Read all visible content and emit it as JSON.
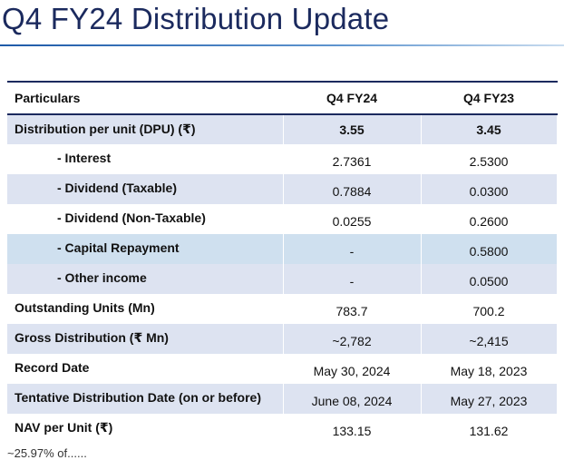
{
  "page": {
    "title": "Q4 FY24 Distribution Update"
  },
  "table": {
    "headers": [
      "Particulars",
      "Q4 FY24",
      "Q4 FY23"
    ],
    "rows": [
      {
        "label": "Distribution per unit (DPU) (₹)",
        "q4fy24": "3.55",
        "q4fy23": "3.45"
      },
      {
        "label": "- Interest",
        "q4fy24": "2.7361",
        "q4fy23": "2.5300"
      },
      {
        "label": "- Dividend (Taxable)",
        "q4fy24": "0.7884",
        "q4fy23": "0.0300"
      },
      {
        "label": "- Dividend (Non-Taxable)",
        "q4fy24": "0.0255",
        "q4fy23": "0.2600"
      },
      {
        "label": "- Capital Repayment",
        "q4fy24": "-",
        "q4fy23": "0.5800"
      },
      {
        "label": "- Other income",
        "q4fy24": "-",
        "q4fy23": "0.0500"
      },
      {
        "label": "Outstanding Units (Mn)",
        "q4fy24": "783.7",
        "q4fy23": "700.2"
      },
      {
        "label": "Gross Distribution (₹ Mn)",
        "q4fy24": "~2,782",
        "q4fy23": "~2,415"
      },
      {
        "label": "Record Date",
        "q4fy24": "May 30, 2024",
        "q4fy23": "May 18, 2023"
      },
      {
        "label": "Tentative Distribution Date (on or before)",
        "q4fy24": "June 08, 2024",
        "q4fy23": "May 27, 2023"
      },
      {
        "label": "NAV per Unit (₹)",
        "q4fy24": "133.15",
        "q4fy23": "131.62"
      }
    ]
  },
  "footnote": "~25.97% of......"
}
